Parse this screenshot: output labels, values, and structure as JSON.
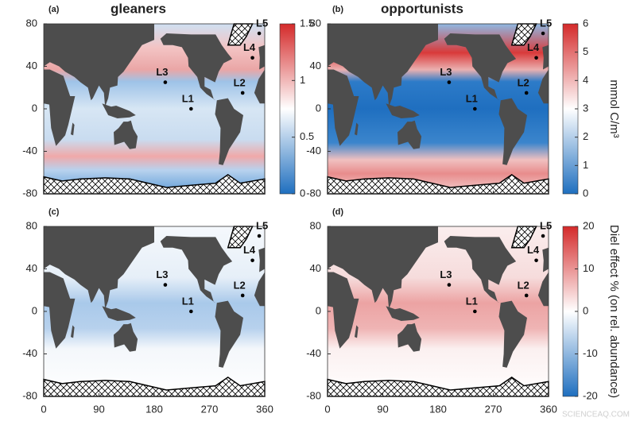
{
  "panels": [
    {
      "label": "(a)",
      "title": "gleaners"
    },
    {
      "label": "(b)",
      "title": "opportunists"
    },
    {
      "label": "(c)"
    },
    {
      "label": "(d)"
    }
  ],
  "xlim": [
    0,
    360
  ],
  "xticks": [
    0,
    90,
    180,
    270,
    360
  ],
  "ylim": [
    -80,
    80
  ],
  "yticks": [
    -80,
    -40,
    0,
    40,
    80
  ],
  "stations": [
    {
      "name": "L1",
      "lon": 240,
      "lat": 0
    },
    {
      "name": "L2",
      "lon": 324,
      "lat": 15
    },
    {
      "name": "L3",
      "lon": 198,
      "lat": 25
    },
    {
      "name": "L4",
      "lon": 340,
      "lat": 48
    },
    {
      "name": "L5",
      "lon": 351,
      "lat": 71
    }
  ],
  "colorbars": [
    {
      "ylim": [
        0,
        1.5
      ],
      "yticks": [
        0,
        0.5,
        1,
        1.5
      ]
    },
    {
      "ylim": [
        0,
        6
      ],
      "yticks": [
        0,
        1,
        2,
        3,
        4,
        5,
        6
      ],
      "label": "mmol C/m³"
    },
    {
      "ylim": [
        -20,
        20
      ],
      "yticks": [
        -20,
        -10,
        0,
        10,
        20
      ],
      "label": "Diel effect % (on rel. abundance)"
    }
  ],
  "watermark": "SCIENCEAQ.COM"
}
